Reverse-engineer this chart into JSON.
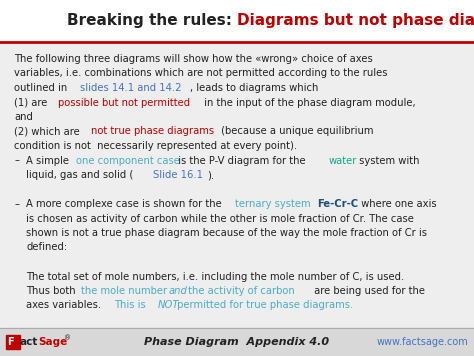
{
  "title_black": "Breaking the rules: ",
  "title_red": "Diagrams but not phase diagrams",
  "bg_color": "#eeeeee",
  "separator_color": "#c00000",
  "footer_text": "Phase Diagram  Appendix 4.0",
  "footer_right": "www.factsage.com",
  "lines": [
    {
      "indent": 0.03,
      "bullet": null,
      "parts": [
        {
          "text": "The following three diagrams will show how the «wrong» choice of axes",
          "color": "#222222",
          "bold": false,
          "italic": false,
          "underline": false
        }
      ]
    },
    {
      "indent": 0.03,
      "bullet": null,
      "parts": [
        {
          "text": "variables, i.e. combinations which are not permitted according to the rules",
          "color": "#222222",
          "bold": false,
          "italic": false,
          "underline": false
        }
      ]
    },
    {
      "indent": 0.03,
      "bullet": null,
      "parts": [
        {
          "text": "outlined in ",
          "color": "#222222",
          "bold": false,
          "italic": false,
          "underline": false
        },
        {
          "text": "slides 14.1 and 14.2",
          "color": "#4472c4",
          "bold": false,
          "italic": false,
          "underline": true
        },
        {
          "text": ", leads to diagrams which",
          "color": "#222222",
          "bold": false,
          "italic": false,
          "underline": false
        }
      ]
    },
    {
      "indent": 0.03,
      "bullet": null,
      "parts": [
        {
          "text": "(1) are ",
          "color": "#222222",
          "bold": false,
          "italic": false,
          "underline": false
        },
        {
          "text": "possible but not permitted",
          "color": "#c00000",
          "bold": false,
          "italic": false,
          "underline": false
        },
        {
          "text": " in the input of the phase diagram module,",
          "color": "#222222",
          "bold": false,
          "italic": false,
          "underline": false
        }
      ]
    },
    {
      "indent": 0.03,
      "bullet": null,
      "parts": [
        {
          "text": "and",
          "color": "#222222",
          "bold": false,
          "italic": false,
          "underline": false
        }
      ]
    },
    {
      "indent": 0.03,
      "bullet": null,
      "parts": [
        {
          "text": "(2) which are ",
          "color": "#222222",
          "bold": false,
          "italic": false,
          "underline": false
        },
        {
          "text": "not true phase diagrams",
          "color": "#c00000",
          "bold": false,
          "italic": false,
          "underline": false
        },
        {
          "text": " (because a unique equilibrium",
          "color": "#222222",
          "bold": false,
          "italic": false,
          "underline": false
        }
      ]
    },
    {
      "indent": 0.03,
      "bullet": null,
      "parts": [
        {
          "text": "condition is not  necessarily represented at every point).",
          "color": "#222222",
          "bold": false,
          "italic": false,
          "underline": false
        }
      ]
    },
    {
      "indent": 0.055,
      "bullet": "–",
      "parts": [
        {
          "text": "A simple ",
          "color": "#222222",
          "bold": false,
          "italic": false,
          "underline": false
        },
        {
          "text": "one component case",
          "color": "#4bacc6",
          "bold": false,
          "italic": false,
          "underline": false
        },
        {
          "text": " is the P-V diagram for the ",
          "color": "#222222",
          "bold": false,
          "italic": false,
          "underline": false
        },
        {
          "text": "water",
          "color": "#17a589",
          "bold": false,
          "italic": false,
          "underline": false
        },
        {
          "text": " system with",
          "color": "#222222",
          "bold": false,
          "italic": false,
          "underline": false
        }
      ]
    },
    {
      "indent": 0.055,
      "bullet": null,
      "parts": [
        {
          "text": "liquid, gas and solid (",
          "color": "#222222",
          "bold": false,
          "italic": false,
          "underline": false
        },
        {
          "text": "Slide 16.1",
          "color": "#4472c4",
          "bold": false,
          "italic": false,
          "underline": true
        },
        {
          "text": ").",
          "color": "#222222",
          "bold": false,
          "italic": false,
          "underline": false
        }
      ]
    },
    {
      "indent": 0.03,
      "bullet": null,
      "parts": [
        {
          "text": " ",
          "color": "#222222",
          "bold": false,
          "italic": false,
          "underline": false
        }
      ]
    },
    {
      "indent": 0.055,
      "bullet": "–",
      "parts": [
        {
          "text": "A more complexe case is shown for the ",
          "color": "#222222",
          "bold": false,
          "italic": false,
          "underline": false
        },
        {
          "text": "ternary system ",
          "color": "#4bacc6",
          "bold": false,
          "italic": false,
          "underline": false
        },
        {
          "text": "Fe-Cr-C",
          "color": "#1a5276",
          "bold": true,
          "italic": false,
          "underline": false
        },
        {
          "text": " where one axis",
          "color": "#222222",
          "bold": false,
          "italic": false,
          "underline": false
        }
      ]
    },
    {
      "indent": 0.055,
      "bullet": null,
      "parts": [
        {
          "text": "is chosen as activity of carbon while the other is mole fraction of Cr. The case",
          "color": "#222222",
          "bold": false,
          "italic": false,
          "underline": false
        }
      ]
    },
    {
      "indent": 0.055,
      "bullet": null,
      "parts": [
        {
          "text": "shown is not a true phase diagram because of the way the mole fraction of Cr is",
          "color": "#222222",
          "bold": false,
          "italic": false,
          "underline": false
        }
      ]
    },
    {
      "indent": 0.055,
      "bullet": null,
      "parts": [
        {
          "text": "defined:",
          "color": "#222222",
          "bold": false,
          "italic": false,
          "underline": false
        }
      ]
    },
    {
      "indent": 0.055,
      "bullet": null,
      "parts": [
        {
          "text": " ",
          "color": "#222222",
          "bold": false,
          "italic": false,
          "underline": false
        }
      ]
    },
    {
      "indent": 0.055,
      "bullet": null,
      "parts": [
        {
          "text": "The total set of mole numbers, i.e. including the mole number of C, is used.",
          "color": "#222222",
          "bold": false,
          "italic": false,
          "underline": false
        }
      ]
    },
    {
      "indent": 0.055,
      "bullet": null,
      "parts": [
        {
          "text": "Thus both ",
          "color": "#222222",
          "bold": false,
          "italic": false,
          "underline": false
        },
        {
          "text": "the mole number ",
          "color": "#4bacc6",
          "bold": false,
          "italic": false,
          "underline": false
        },
        {
          "text": "and",
          "color": "#4bacc6",
          "bold": false,
          "italic": true,
          "underline": true
        },
        {
          "text": " the activity of carbon",
          "color": "#4bacc6",
          "bold": false,
          "italic": false,
          "underline": false
        },
        {
          "text": " are being used for the",
          "color": "#222222",
          "bold": false,
          "italic": false,
          "underline": false
        }
      ]
    },
    {
      "indent": 0.055,
      "bullet": null,
      "parts": [
        {
          "text": "axes variables. ",
          "color": "#222222",
          "bold": false,
          "italic": false,
          "underline": false
        },
        {
          "text": "This is ",
          "color": "#4bacc6",
          "bold": false,
          "italic": false,
          "underline": false
        },
        {
          "text": "NOT",
          "color": "#4bacc6",
          "bold": false,
          "italic": true,
          "underline": false
        },
        {
          "text": " permitted for true phase diagrams.",
          "color": "#4bacc6",
          "bold": false,
          "italic": false,
          "underline": false
        }
      ]
    }
  ]
}
